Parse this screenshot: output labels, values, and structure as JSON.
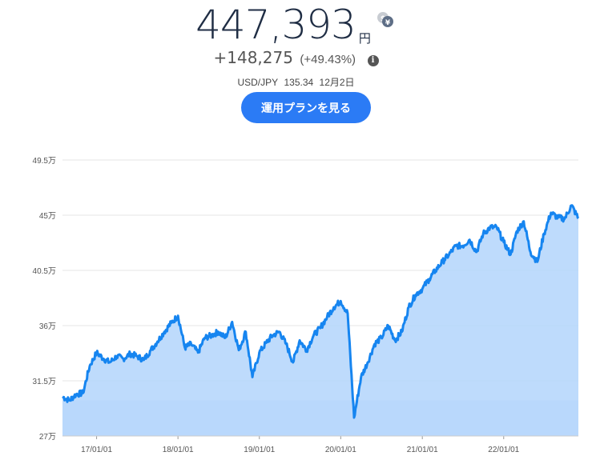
{
  "portfolio": {
    "value": "447,393",
    "currency": "円",
    "change_amount": "+148,275",
    "change_percent": "(+49.43%)",
    "fx_pair": "USD/JPY",
    "fx_rate": "135.34",
    "fx_date": "12月2日",
    "plan_button_label": "運用プランを見る"
  },
  "icons": {
    "swap": "currency-swap-icon",
    "info": "info-icon"
  },
  "colors": {
    "accent": "#2b7bf5",
    "line": "#1685f0",
    "area": "#b3d5fb",
    "principal_area": "#deecfc",
    "value_text": "#1f2d44"
  },
  "chart_data": {
    "type": "area",
    "title": "",
    "xlabel": "",
    "ylabel": "",
    "ylim": [
      270000,
      495000
    ],
    "y_ticks": [
      {
        "value": 495000,
        "label": "49.5万"
      },
      {
        "value": 450000,
        "label": "45万"
      },
      {
        "value": 405000,
        "label": "40.5万"
      },
      {
        "value": 360000,
        "label": "36万"
      },
      {
        "value": 315000,
        "label": "31.5万"
      },
      {
        "value": 270000,
        "label": "27万"
      }
    ],
    "x_ticks": [
      "17/01/01",
      "18/01/01",
      "19/01/01",
      "20/01/01",
      "21/01/01",
      "22/01/01"
    ],
    "x_range": [
      "2016-08-01",
      "2022-12-02"
    ],
    "grid": true,
    "series": [
      {
        "x": [
          "2016-08-01",
          "2016-09-01",
          "2016-10-01",
          "2016-11-01",
          "2016-12-01",
          "2017-01-01",
          "2017-02-01",
          "2017-03-01",
          "2017-04-01",
          "2017-05-01",
          "2017-06-01",
          "2017-07-01",
          "2017-08-01",
          "2017-09-01",
          "2017-10-01",
          "2017-11-01",
          "2017-12-01",
          "2018-01-01",
          "2018-02-01",
          "2018-03-01",
          "2018-04-01",
          "2018-05-01",
          "2018-06-01",
          "2018-07-01",
          "2018-08-01",
          "2018-09-01",
          "2018-10-01",
          "2018-11-01",
          "2018-12-01",
          "2019-01-01",
          "2019-02-01",
          "2019-03-01",
          "2019-04-01",
          "2019-05-01",
          "2019-06-01",
          "2019-07-01",
          "2019-08-01",
          "2019-09-01",
          "2019-10-01",
          "2019-11-01",
          "2019-12-01",
          "2020-01-01",
          "2020-02-01",
          "2020-03-01",
          "2020-04-01",
          "2020-05-01",
          "2020-06-01",
          "2020-07-01",
          "2020-08-01",
          "2020-09-01",
          "2020-10-01",
          "2020-11-01",
          "2020-12-01",
          "2021-01-01",
          "2021-02-01",
          "2021-03-01",
          "2021-04-01",
          "2021-05-01",
          "2021-06-01",
          "2021-07-01",
          "2021-08-01",
          "2021-09-01",
          "2021-10-01",
          "2021-11-01",
          "2021-12-01",
          "2022-01-01",
          "2022-02-01",
          "2022-03-01",
          "2022-04-01",
          "2022-05-01",
          "2022-06-01",
          "2022-07-01",
          "2022-08-01",
          "2022-09-01",
          "2022-10-01",
          "2022-11-01",
          "2022-12-02"
        ],
        "values": [
          302000,
          299000,
          304000,
          305000,
          327000,
          338000,
          333000,
          330000,
          335000,
          333000,
          337000,
          335000,
          332000,
          340000,
          347000,
          355000,
          362000,
          368000,
          342000,
          345000,
          338000,
          350000,
          352000,
          355000,
          350000,
          363000,
          340000,
          355000,
          318000,
          338000,
          346000,
          352000,
          355000,
          345000,
          330000,
          348000,
          340000,
          352000,
          358000,
          367000,
          375000,
          380000,
          370000,
          285000,
          318000,
          330000,
          345000,
          350000,
          360000,
          348000,
          355000,
          375000,
          385000,
          390000,
          398000,
          405000,
          412000,
          418000,
          425000,
          425000,
          430000,
          420000,
          435000,
          440000,
          440000,
          428000,
          418000,
          437000,
          445000,
          420000,
          412000,
          435000,
          452000,
          448000,
          447000,
          458000,
          447393
        ]
      }
    ],
    "principal": {
      "x_start": "2016-08-01",
      "x_end": "2022-12-02",
      "value": 299118
    }
  }
}
